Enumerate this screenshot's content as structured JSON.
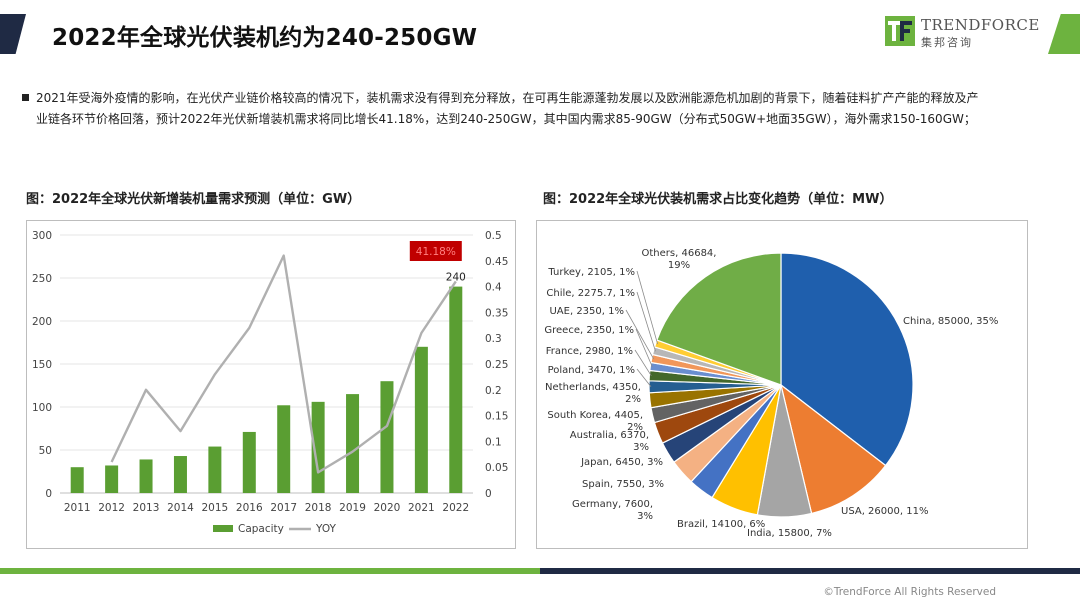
{
  "header": {
    "title": "2022年全球光伏装机约为240-250GW",
    "logo_name": "TRENDFORCE",
    "logo_sub": "集邦咨询"
  },
  "body_text": {
    "line1": "2021年受海外疫情的影响，在光伏产业链价格较高的情况下，装机需求没有得到充分释放，在可再生能源蓬勃发展以及欧洲能源危机加剧的背景下，随着硅料扩产产能的释放及产",
    "line2": "业链各环节价格回落，预计2022年光伏新增装机需求将同比增长41.18%，达到240-250GW，其中国内需求85-90GW（分布式50GW+地面35GW），海外需求150-160GW；"
  },
  "chart_captions": {
    "left": "图：2022年全球光伏新增装机量需求预测（单位：GW）",
    "right": "图：2022年全球光伏装机需求占比变化趋势（单位：MW）"
  },
  "colors": {
    "bar": "#5a9e32",
    "line": "#b0b0b0",
    "badge": "#c00000",
    "accent_green": "#6db33f",
    "navy": "#1f2a44"
  },
  "footer": {
    "copyright": "©TrendForce All Rights Reserved"
  },
  "chart_data": [
    {
      "type": "bar",
      "categories": [
        "2011",
        "2012",
        "2013",
        "2014",
        "2015",
        "2016",
        "2017",
        "2018",
        "2019",
        "2020",
        "2021",
        "2022"
      ],
      "series": [
        {
          "name": "Capacity",
          "type": "bar",
          "axis": "left",
          "values": [
            30,
            32,
            39,
            43,
            54,
            71,
            102,
            106,
            115,
            130,
            170,
            240
          ]
        },
        {
          "name": "YOY",
          "type": "line",
          "axis": "right",
          "values": [
            null,
            0.06,
            0.2,
            0.12,
            0.23,
            0.32,
            0.46,
            0.04,
            0.08,
            0.13,
            0.31,
            0.41
          ]
        }
      ],
      "ylim": [
        0,
        300
      ],
      "y_ticks": [
        "0",
        "50",
        "100",
        "150",
        "200",
        "250",
        "300"
      ],
      "y2lim": [
        0,
        0.5
      ],
      "y2_ticks": [
        "0",
        "0.05",
        "0.1",
        "0.15",
        "0.2",
        "0.25",
        "0.3",
        "0.35",
        "0.4",
        "0.45",
        "0.5"
      ],
      "grid": true,
      "legend": "bottom",
      "annotations": {
        "last_bar_label": "240",
        "badge": "41.18%"
      }
    },
    {
      "type": "pie",
      "slices": [
        {
          "label": "China, 85000, 35%",
          "value": 85000,
          "color": "#1f5fad"
        },
        {
          "label": "USA, 26000, 11%",
          "value": 26000,
          "color": "#ed7d31"
        },
        {
          "label": "India, 15800, 7%",
          "value": 15800,
          "color": "#a5a5a5"
        },
        {
          "label": "Brazil, 14100, 6%",
          "value": 14100,
          "color": "#ffc000"
        },
        {
          "label": "Germany, 7600, 3%",
          "value": 7600,
          "color": "#4472c4"
        },
        {
          "label": "Spain, 7550, 3%",
          "value": 7550,
          "color": "#f4b183"
        },
        {
          "label": "Japan, 6450, 3%",
          "value": 6450,
          "color": "#264478"
        },
        {
          "label": "Australia, 6370, 3%",
          "value": 6370,
          "color": "#9e480e"
        },
        {
          "label": "South Korea, 4405, 2%",
          "value": 4405,
          "color": "#636363"
        },
        {
          "label": "Netherlands, 4350, 2%",
          "value": 4350,
          "color": "#997300"
        },
        {
          "label": "Poland, 3470, 1%",
          "value": 3470,
          "color": "#255e91"
        },
        {
          "label": "France, 2980, 1%",
          "value": 2980,
          "color": "#43682b"
        },
        {
          "label": "Greece, 2350, 1%",
          "value": 2350,
          "color": "#698ed0"
        },
        {
          "label": "UAE, 2350, 1%",
          "value": 2350,
          "color": "#f1975a"
        },
        {
          "label": "Chile, 2275.7, 1%",
          "value": 2275.7,
          "color": "#b7b7b7"
        },
        {
          "label": "Turkey, 2105, 1%",
          "value": 2105,
          "color": "#ffcd33"
        },
        {
          "label": "Others, 46684, 19%",
          "value": 46684,
          "color": "#70ad47"
        }
      ]
    }
  ]
}
